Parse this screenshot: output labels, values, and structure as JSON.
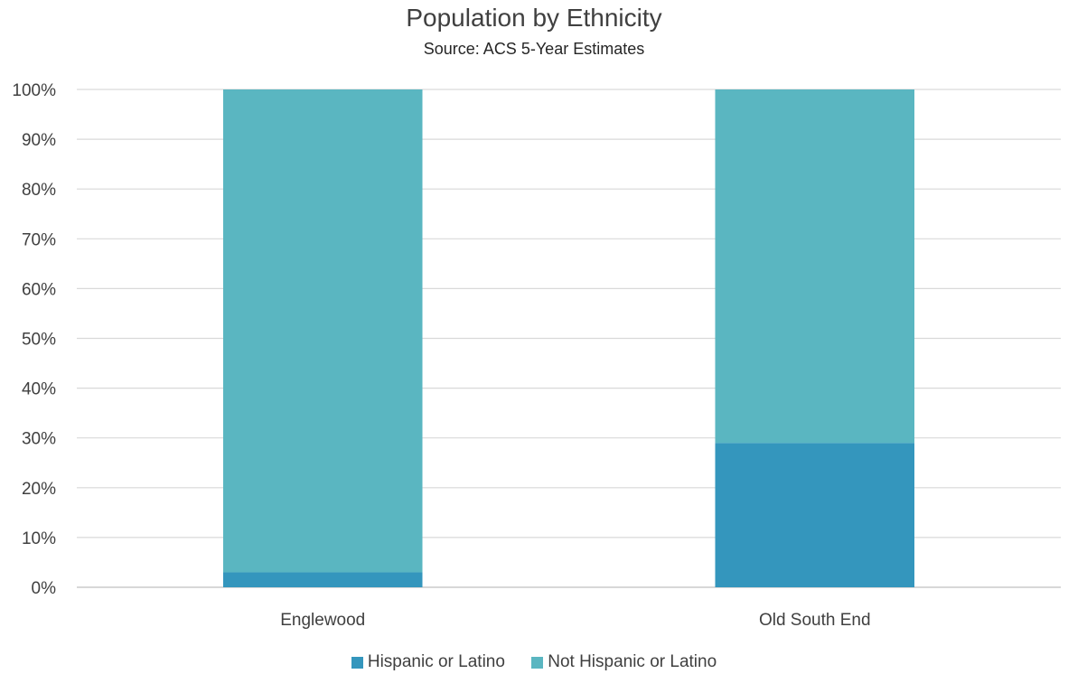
{
  "chart_data": {
    "type": "bar",
    "stacked": true,
    "percent": true,
    "title": "Population by Ethnicity",
    "subtitle": "Source: ACS 5-Year Estimates",
    "categories": [
      "Englewood",
      "Old South End"
    ],
    "series": [
      {
        "name": "Hispanic or Latino",
        "values": [
          3,
          29
        ],
        "color": "#3496BD"
      },
      {
        "name": "Not Hispanic or Latino",
        "values": [
          97,
          71
        ],
        "color": "#5AB6C1"
      }
    ],
    "ylim": [
      0,
      100
    ],
    "yticks": [
      "0%",
      "10%",
      "20%",
      "30%",
      "40%",
      "50%",
      "60%",
      "70%",
      "80%",
      "90%",
      "100%"
    ],
    "grid": true,
    "legend_position": "bottom"
  }
}
